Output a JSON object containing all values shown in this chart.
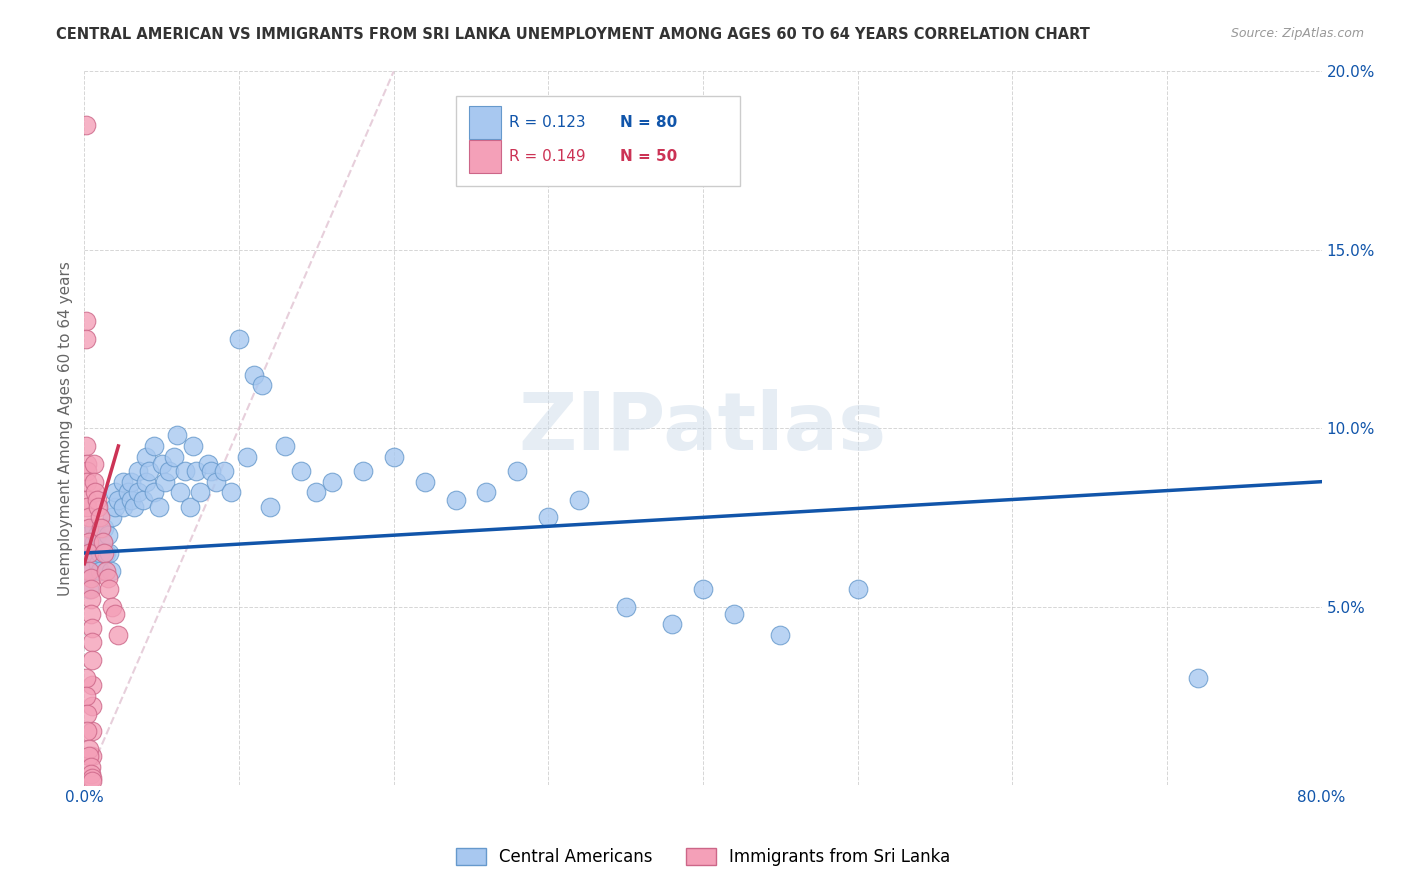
{
  "title": "CENTRAL AMERICAN VS IMMIGRANTS FROM SRI LANKA UNEMPLOYMENT AMONG AGES 60 TO 64 YEARS CORRELATION CHART",
  "source": "Source: ZipAtlas.com",
  "ylabel": "Unemployment Among Ages 60 to 64 years",
  "xlim": [
    0,
    0.8
  ],
  "ylim": [
    0,
    0.2
  ],
  "yticks": [
    0.0,
    0.05,
    0.1,
    0.15,
    0.2
  ],
  "yticklabels": [
    "",
    "5.0%",
    "10.0%",
    "15.0%",
    "20.0%"
  ],
  "blue_color": "#a8c8f0",
  "blue_edge_color": "#6699cc",
  "pink_color": "#f4a0b8",
  "pink_edge_color": "#cc6688",
  "blue_line_color": "#1155aa",
  "pink_line_color": "#cc3355",
  "diag_line_color": "#ddbbcc",
  "legend_blue_r": "R = 0.123",
  "legend_blue_n": "N = 80",
  "legend_pink_r": "R = 0.149",
  "legend_pink_n": "N = 50",
  "watermark": "ZIPatlas",
  "blue_scatter_x": [
    0.001,
    0.002,
    0.003,
    0.003,
    0.004,
    0.004,
    0.005,
    0.005,
    0.006,
    0.006,
    0.007,
    0.008,
    0.009,
    0.01,
    0.01,
    0.012,
    0.013,
    0.014,
    0.015,
    0.016,
    0.017,
    0.018,
    0.02,
    0.02,
    0.022,
    0.025,
    0.025,
    0.028,
    0.03,
    0.03,
    0.032,
    0.035,
    0.035,
    0.038,
    0.04,
    0.04,
    0.042,
    0.045,
    0.045,
    0.048,
    0.05,
    0.052,
    0.055,
    0.058,
    0.06,
    0.062,
    0.065,
    0.068,
    0.07,
    0.072,
    0.075,
    0.08,
    0.082,
    0.085,
    0.09,
    0.095,
    0.1,
    0.105,
    0.11,
    0.115,
    0.12,
    0.13,
    0.14,
    0.15,
    0.16,
    0.18,
    0.2,
    0.22,
    0.24,
    0.26,
    0.28,
    0.3,
    0.32,
    0.35,
    0.38,
    0.4,
    0.42,
    0.45,
    0.5,
    0.72
  ],
  "blue_scatter_y": [
    0.065,
    0.06,
    0.07,
    0.055,
    0.065,
    0.06,
    0.065,
    0.06,
    0.068,
    0.072,
    0.065,
    0.07,
    0.062,
    0.065,
    0.06,
    0.068,
    0.072,
    0.065,
    0.07,
    0.065,
    0.06,
    0.075,
    0.078,
    0.082,
    0.08,
    0.085,
    0.078,
    0.082,
    0.08,
    0.085,
    0.078,
    0.082,
    0.088,
    0.08,
    0.085,
    0.092,
    0.088,
    0.095,
    0.082,
    0.078,
    0.09,
    0.085,
    0.088,
    0.092,
    0.098,
    0.082,
    0.088,
    0.078,
    0.095,
    0.088,
    0.082,
    0.09,
    0.088,
    0.085,
    0.088,
    0.082,
    0.125,
    0.092,
    0.115,
    0.112,
    0.078,
    0.095,
    0.088,
    0.082,
    0.085,
    0.088,
    0.092,
    0.085,
    0.08,
    0.082,
    0.088,
    0.075,
    0.08,
    0.05,
    0.045,
    0.055,
    0.048,
    0.042,
    0.055,
    0.03
  ],
  "pink_scatter_x": [
    0.001,
    0.001,
    0.001,
    0.001,
    0.002,
    0.002,
    0.002,
    0.002,
    0.002,
    0.003,
    0.003,
    0.003,
    0.003,
    0.003,
    0.004,
    0.004,
    0.004,
    0.004,
    0.005,
    0.005,
    0.005,
    0.005,
    0.005,
    0.005,
    0.005,
    0.006,
    0.006,
    0.007,
    0.008,
    0.009,
    0.01,
    0.011,
    0.012,
    0.013,
    0.014,
    0.015,
    0.016,
    0.018,
    0.02,
    0.022,
    0.001,
    0.001,
    0.002,
    0.002,
    0.003,
    0.003,
    0.004,
    0.004,
    0.005,
    0.005
  ],
  "pink_scatter_y": [
    0.185,
    0.13,
    0.125,
    0.095,
    0.09,
    0.088,
    0.085,
    0.08,
    0.078,
    0.075,
    0.072,
    0.068,
    0.065,
    0.06,
    0.058,
    0.055,
    0.052,
    0.048,
    0.044,
    0.04,
    0.035,
    0.028,
    0.022,
    0.015,
    0.008,
    0.09,
    0.085,
    0.082,
    0.08,
    0.078,
    0.075,
    0.072,
    0.068,
    0.065,
    0.06,
    0.058,
    0.055,
    0.05,
    0.048,
    0.042,
    0.03,
    0.025,
    0.02,
    0.015,
    0.01,
    0.008,
    0.005,
    0.003,
    0.002,
    0.001
  ]
}
